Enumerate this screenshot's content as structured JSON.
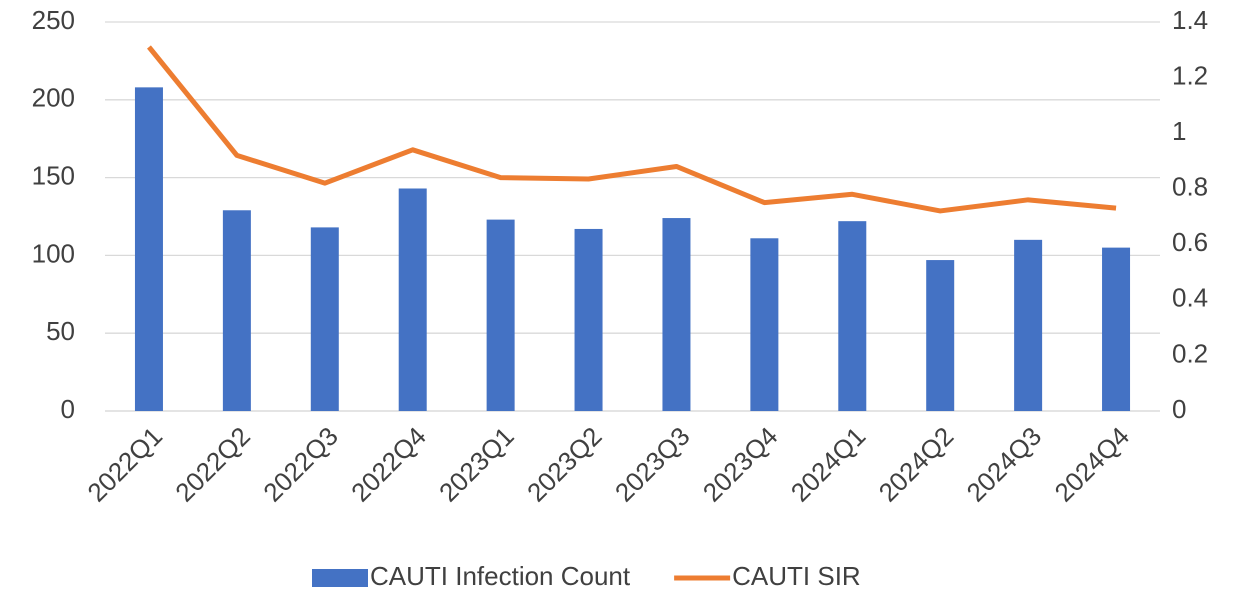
{
  "chart_data": {
    "type": "bar",
    "categories": [
      "2022Q1",
      "2022Q2",
      "2022Q3",
      "2022Q4",
      "2023Q1",
      "2023Q2",
      "2023Q3",
      "2023Q4",
      "2024Q1",
      "2024Q2",
      "2024Q3",
      "2024Q4"
    ],
    "series": [
      {
        "name": "CAUTI Infection Count",
        "type": "bar",
        "color": "#4472c4",
        "values": [
          208,
          129,
          118,
          143,
          123,
          117,
          124,
          111,
          122,
          97,
          110,
          105
        ]
      },
      {
        "name": "CAUTI SIR",
        "type": "line",
        "axis": "y2",
        "color": "#ed7d31",
        "values": [
          1.31,
          0.92,
          0.82,
          0.94,
          0.84,
          0.835,
          0.88,
          0.75,
          0.78,
          0.72,
          0.76,
          0.73
        ]
      }
    ],
    "ylim": [
      0,
      250
    ],
    "yticks": [
      0,
      50,
      100,
      150,
      200,
      250
    ],
    "y2lim": [
      0,
      1.4
    ],
    "y2ticks": [
      0,
      0.2,
      0.4,
      0.6,
      0.8,
      1,
      1.2,
      1.4
    ],
    "grid": true,
    "legend": "bottom"
  }
}
